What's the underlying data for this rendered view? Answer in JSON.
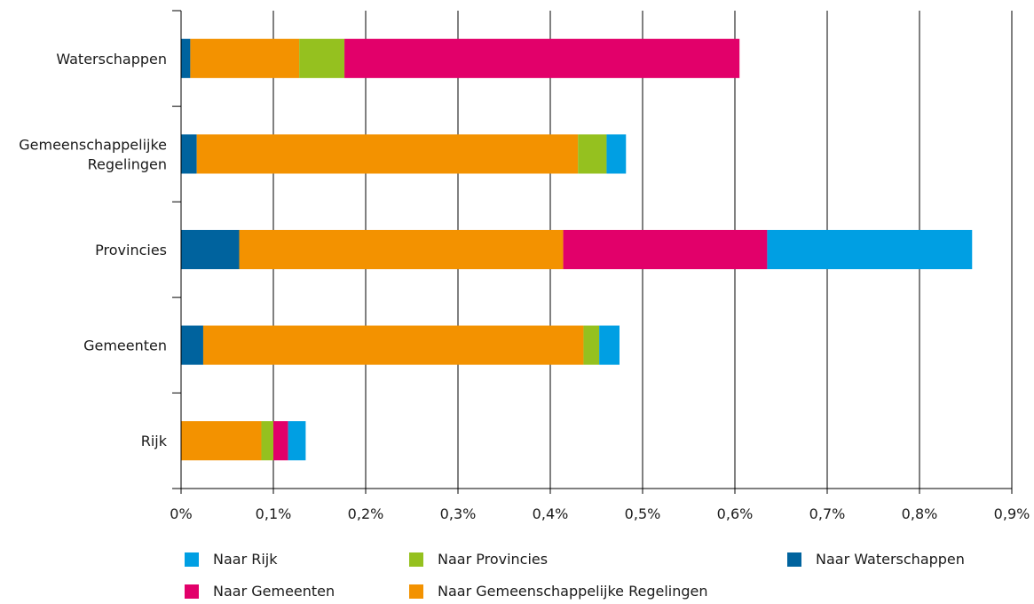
{
  "chart_data": {
    "type": "bar",
    "orientation": "horizontal",
    "stacked": true,
    "categories": [
      "Waterschappen",
      "Gemeenschappelijke Regelingen",
      "Provincies",
      "Gemeenten",
      "Rijk"
    ],
    "category_lines": [
      [
        "Waterschappen"
      ],
      [
        "Gemeenschappelijke",
        "Regelingen"
      ],
      [
        "Provincies"
      ],
      [
        "Gemeenten"
      ],
      [
        "Rijk"
      ]
    ],
    "series": [
      {
        "name": "Naar Waterschappen",
        "color": "#00639e",
        "values": [
          0.01,
          0.017,
          0.063,
          0.024,
          0.0
        ]
      },
      {
        "name": "Naar Gemeenschappelijke Regelingen",
        "color": "#f39200",
        "values": [
          0.118,
          0.413,
          0.351,
          0.412,
          0.087
        ]
      },
      {
        "name": "Naar Provincies",
        "color": "#95c11f",
        "values": [
          0.049,
          0.031,
          0.0,
          0.017,
          0.013
        ]
      },
      {
        "name": "Naar Gemeenten",
        "color": "#e2006a",
        "values": [
          0.428,
          0.0,
          0.221,
          0.0,
          0.016
        ]
      },
      {
        "name": "Naar Rijk",
        "color": "#009fe3",
        "values": [
          0.0,
          0.021,
          0.222,
          0.022,
          0.019
        ]
      }
    ],
    "xlim": [
      0,
      0.9
    ],
    "xticks": [
      0,
      0.1,
      0.2,
      0.3,
      0.4,
      0.5,
      0.6,
      0.7,
      0.8,
      0.9
    ],
    "xtick_labels": [
      "0%",
      "0,1%",
      "0,2%",
      "0,3%",
      "0,4%",
      "0,5%",
      "0,6%",
      "0,7%",
      "0,8%",
      "0,9%"
    ],
    "grid": "vertical",
    "legend_position": "bottom"
  },
  "legend": [
    {
      "label": "Naar Rijk",
      "color": "#009fe3"
    },
    {
      "label": "Naar Provincies",
      "color": "#95c11f"
    },
    {
      "label": "Naar Waterschappen",
      "color": "#00639e"
    },
    {
      "label": "Naar Gemeenten",
      "color": "#e2006a"
    },
    {
      "label": "Naar Gemeenschappelijke Regelingen",
      "color": "#f39200"
    }
  ]
}
